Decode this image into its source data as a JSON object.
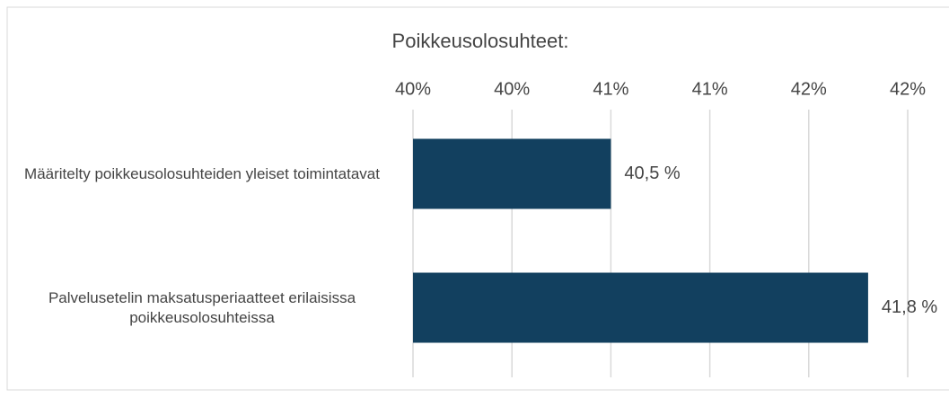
{
  "chart_data": {
    "type": "barh",
    "title": "Poikkeusolosuhteet:",
    "categories": [
      "Määritelty poikkeusolosuhteiden yleiset toimintatavat",
      "Palvelusetelin maksatusperiaatteet erilaisissa poikkeusolosuhteissa"
    ],
    "values": [
      40.5,
      41.8
    ],
    "value_labels": [
      "40,5 %",
      "41,8 %"
    ],
    "color": "#12405f",
    "xlim": [
      39.5,
      42.0
    ],
    "xticks": [
      {
        "value": 39.5,
        "label": "40%"
      },
      {
        "value": 40.0,
        "label": "40%"
      },
      {
        "value": 40.5,
        "label": "41%"
      },
      {
        "value": 41.0,
        "label": "41%"
      },
      {
        "value": 41.5,
        "label": "42%"
      },
      {
        "value": 42.0,
        "label": "42%"
      }
    ],
    "grid": true
  }
}
